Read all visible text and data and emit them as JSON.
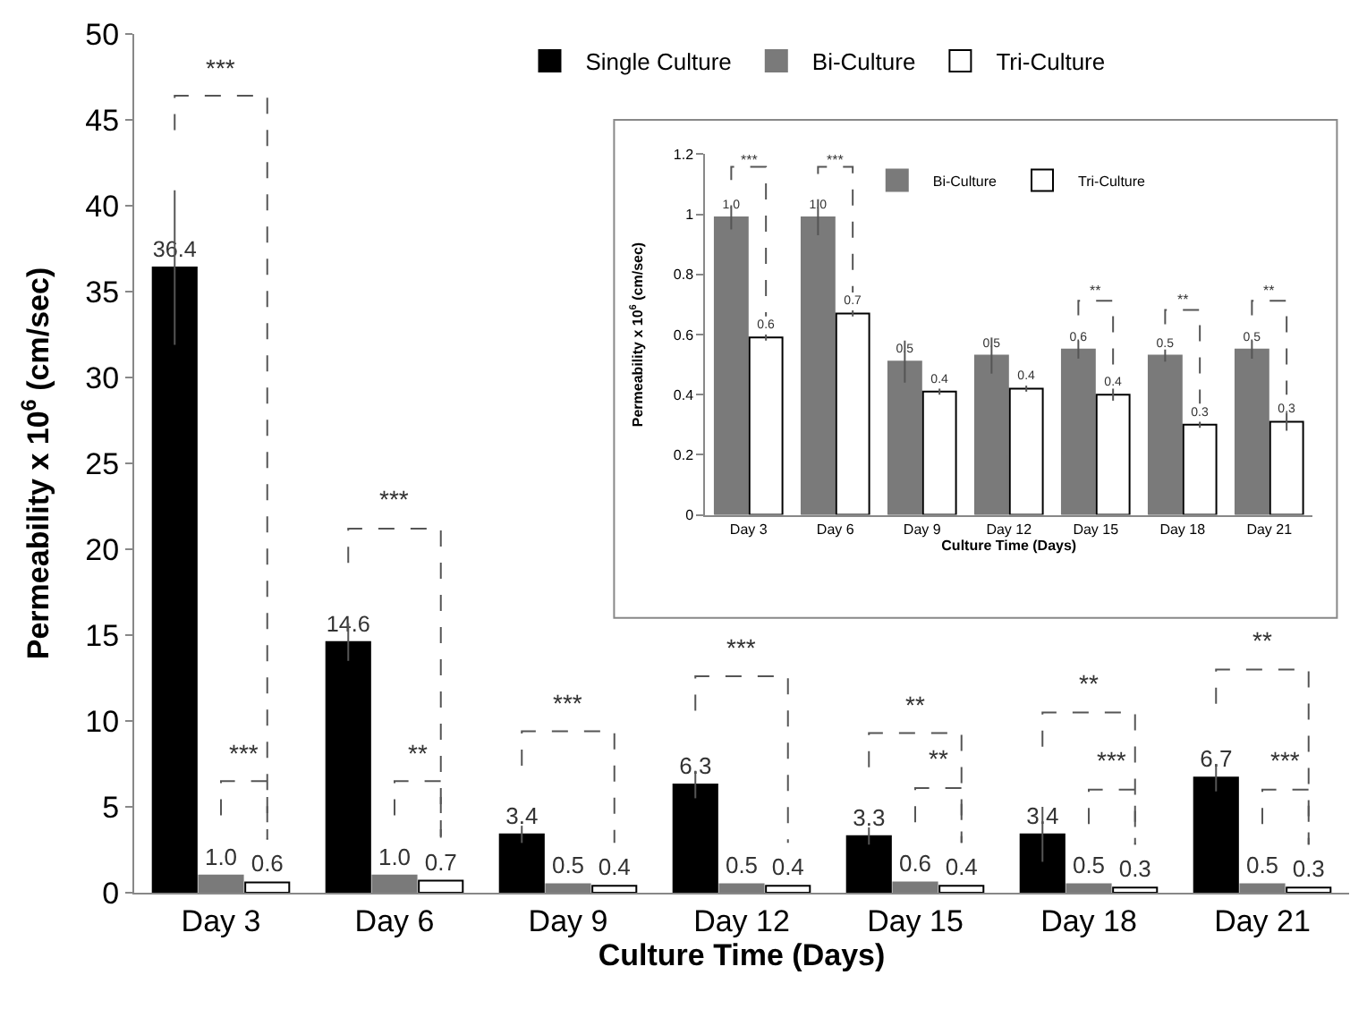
{
  "chart_data": [
    {
      "type": "bar",
      "xlabel": "Culture Time (Days)",
      "ylabel": "Permeability x 10$^{6}$ (cm/sec)",
      "categories": [
        "Day 3",
        "Day 6",
        "Day 9",
        "Day 12",
        "Day 15",
        "Day 18",
        "Day 21"
      ],
      "series": [
        {
          "name": "Single Culture",
          "color": "#000000",
          "values": [
            36.4,
            14.6,
            3.4,
            6.3,
            3.3,
            3.4,
            6.7
          ],
          "errors": [
            4.5,
            1.1,
            0.5,
            0.8,
            0.5,
            1.6,
            0.8
          ],
          "value_labels": [
            "36.4",
            "14.6",
            "3.4",
            "6.3",
            "3.3",
            "3.4",
            "6.7"
          ]
        },
        {
          "name": "Bi-Culture",
          "color": "#7a7a7a",
          "values": [
            1.0,
            1.0,
            0.5,
            0.5,
            0.6,
            0.5,
            0.5
          ],
          "value_labels": [
            "1.0",
            "1.0",
            "0.5",
            "0.5",
            "0.6",
            "0.5",
            "0.5"
          ]
        },
        {
          "name": "Tri-Culture",
          "color": "#ffffff",
          "values": [
            0.6,
            0.7,
            0.4,
            0.4,
            0.4,
            0.3,
            0.3
          ],
          "value_labels": [
            "0.6",
            "0.7",
            "0.4",
            "0.4",
            "0.4",
            "0.3",
            "0.3"
          ]
        }
      ],
      "ylim": [
        0,
        50
      ],
      "yticks": [
        0,
        5,
        10,
        15,
        20,
        25,
        30,
        35,
        40,
        45,
        50
      ],
      "legend": "top",
      "annotations": [
        "***",
        "***",
        "***",
        "**",
        "***",
        "***",
        "**",
        "**",
        "**",
        "***",
        "**",
        "***"
      ]
    },
    {
      "type": "bar",
      "xlabel": "Culture Time (Days)",
      "ylabel": "Permeability x 10$^{6}$ (cm/sec)",
      "categories": [
        "Day 3",
        "Day 6",
        "Day 9",
        "Day 12",
        "Day 15",
        "Day 18",
        "Day 21"
      ],
      "series": [
        {
          "name": "Bi-Culture",
          "color": "#7a7a7a",
          "values": [
            0.99,
            0.99,
            0.51,
            0.53,
            0.55,
            0.53,
            0.55
          ],
          "errors": [
            0.04,
            0.06,
            0.07,
            0.06,
            0.03,
            0.02,
            0.03
          ],
          "value_labels": [
            "1.0",
            "1.0",
            "0.5",
            "0.5",
            "0.6",
            "0.5",
            "0.5"
          ]
        },
        {
          "name": "Tri-Culture",
          "color": "#ffffff",
          "values": [
            0.59,
            0.67,
            0.41,
            0.42,
            0.4,
            0.3,
            0.31
          ],
          "errors": [
            0.01,
            0.01,
            0.01,
            0.01,
            0.02,
            0.01,
            0.03
          ],
          "value_labels": [
            "0.6",
            "0.7",
            "0.4",
            "0.4",
            "0.4",
            "0.3",
            "0.3"
          ]
        }
      ],
      "ylim": [
        0,
        1.2
      ],
      "yticks": [
        0,
        0.2,
        0.4,
        0.6,
        0.8,
        1,
        1.2
      ],
      "legend": "top",
      "annotations": [
        "***",
        "***",
        "**",
        "**",
        "**"
      ]
    }
  ]
}
